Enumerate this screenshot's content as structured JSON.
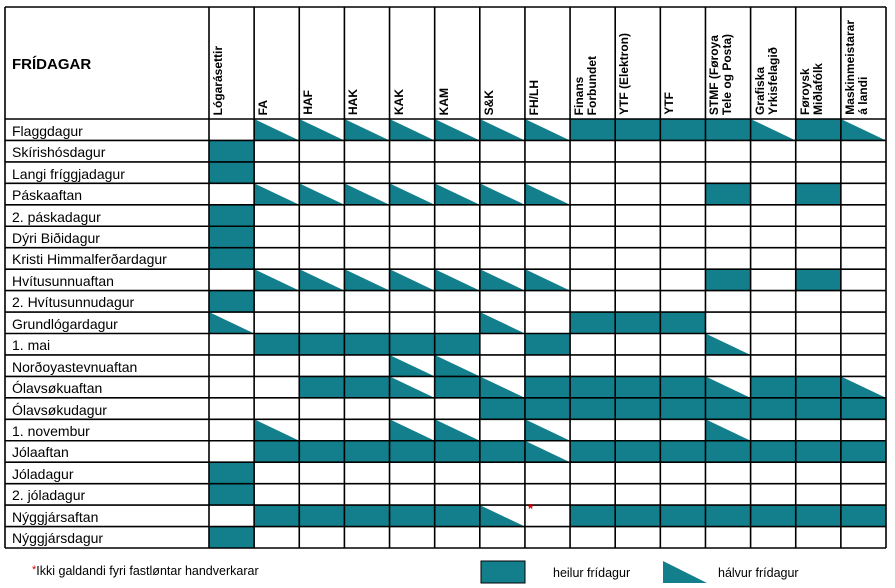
{
  "table": {
    "title": "FRÍDAGAR",
    "columns": [
      "Lógarásettir",
      "FA",
      "HAF",
      "HAK",
      "KAK",
      "KAM",
      "S&K",
      "FH/LH",
      "Finans\nForbundet",
      "YTF (Elektron)",
      "YTF",
      "STMF (Føroya\nTele og Posta)",
      "Grafiska\nYrkisfelagið",
      "Føroysk\nMiðlafólk",
      "Maskinmeistarar\ná landi"
    ],
    "rows": [
      {
        "label": "Flaggdagur",
        "cells": "0HHHHHHHFFFFHFH"
      },
      {
        "label": "Skírishósdagur",
        "cells": "F00000000000000"
      },
      {
        "label": "Langi fríggjadagur",
        "cells": "F00000000000000"
      },
      {
        "label": "Páskaaftan",
        "cells": "0HHHHHHH000F0F0"
      },
      {
        "label": "2. páskadagur",
        "cells": "F00000000000000"
      },
      {
        "label": "Dýri Biðidagur",
        "cells": "F00000000000000"
      },
      {
        "label": "Kristi Himmalferðardagur",
        "cells": "F00000000000000"
      },
      {
        "label": "Hvítusunnuaftan",
        "cells": "0HHHHHHH000F0F0"
      },
      {
        "label": "2. Hvítusunnudagur",
        "cells": "F00000000000000"
      },
      {
        "label": "Grundlógardagur",
        "cells": "H00000H0FFF0000"
      },
      {
        "label": "1. mai",
        "cells": "0FFFFF0F000H000"
      },
      {
        "label": "Norðoyastevnuaftan",
        "cells": "0000HH000000000"
      },
      {
        "label": "Ólavsøkuaftan",
        "cells": "00FFHFHFFFFHFFH"
      },
      {
        "label": "Ólavsøkudagur",
        "cells": "000000FFFFFFFFF"
      },
      {
        "label": "1. novembur",
        "cells": "0H00HH0H000H000"
      },
      {
        "label": "Jólaaftan",
        "cells": "0FFFFFFHFFFFFFF"
      },
      {
        "label": "Jóladagur",
        "cells": "F00000000000000"
      },
      {
        "label": "2. jóladagur",
        "cells": "F00000000000000"
      },
      {
        "label": "Nýggjársaftan",
        "cells": "0FFFFFH0FFFFFFF"
      },
      {
        "label": "Nýggjársdagur",
        "cells": "F00000000000000"
      }
    ],
    "asterisk_mark": "*"
  },
  "footnote": {
    "star": "*",
    "text": "Ikki galdandi fyri fastløntar handverkarar"
  },
  "legend": {
    "full_label": "heilur frídagur",
    "half_label": "hálvur frídagur"
  },
  "colors": {
    "fill": "#137f8c",
    "grid": "#000000"
  }
}
